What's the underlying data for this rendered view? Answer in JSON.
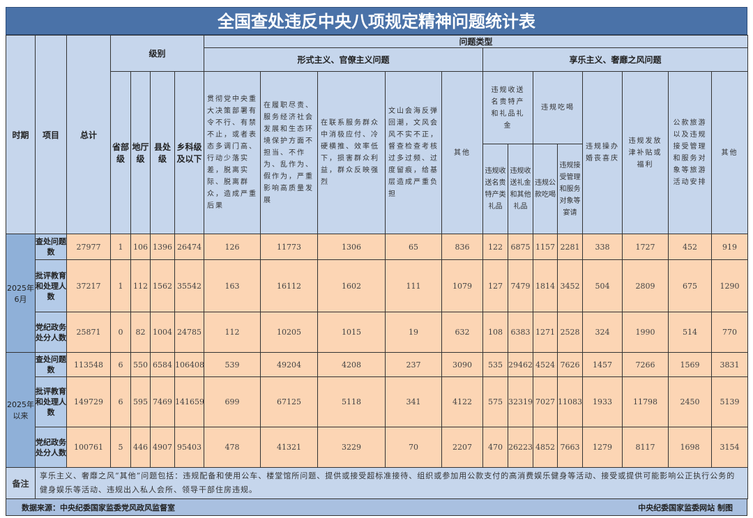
{
  "title": "全国查处违反中央八项规定精神问题统计表",
  "header": {
    "period": "时期",
    "item": "项目",
    "total": "总计",
    "level": "级别",
    "problem_type": "问题类型",
    "levels": [
      "省部级",
      "地厅级",
      "县处级",
      "乡科级及以下"
    ],
    "formalism": {
      "label": "形式主义、官僚主义问题",
      "cols": [
        "贯彻党中央重大决策部署有令不行、有禁不止，或者表态多调门高、行动少落实差，脱离实际、脱离群众，造成严重后果",
        "在履职尽责、服务经济社会发展和生态环境保护方面不担当、不作为、乱作为、假作为，严重影响高质量发展",
        "在联系服务群众中消极应付、冷硬横推、效率低下，损害群众利益，群众反映强烈",
        "文山会海反弹回潮，文风会风不实不正，督查检查考核过多过频、过度留痕，给基层造成严重负担",
        "其他"
      ]
    },
    "hedonism": {
      "label": "享乐主义、奢靡之风问题",
      "gifts": {
        "label": "违规收送名贵特产和礼品礼金",
        "sub": [
          "违规收送名贵特产类礼品",
          "违规收送礼金和其他礼品"
        ]
      },
      "dining": {
        "label": "违规吃喝",
        "sub": [
          "违规公款吃喝",
          "违规接受管理和服务对象等宴请"
        ]
      },
      "cols": [
        "违规操办婚丧喜庆",
        "违规发放津补贴或福利",
        "公款旅游以及违规接受管理和服务对象等旅游活动安排",
        "其他"
      ]
    }
  },
  "groups": [
    {
      "period": "2025年6月",
      "rows": [
        {
          "item": "查处问题数",
          "values": [
            27977,
            1,
            106,
            1396,
            26474,
            126,
            11773,
            1306,
            65,
            836,
            122,
            6875,
            1157,
            2281,
            338,
            1727,
            452,
            919
          ]
        },
        {
          "item": "批评教育和处理人数",
          "values": [
            37217,
            1,
            112,
            1562,
            35542,
            163,
            16112,
            1602,
            111,
            1079,
            127,
            7479,
            1814,
            3452,
            504,
            2809,
            675,
            1290
          ]
        },
        {
          "item": "党纪政务处分人数",
          "values": [
            25871,
            0,
            82,
            1004,
            24785,
            112,
            10205,
            1015,
            19,
            632,
            108,
            6383,
            1271,
            2528,
            324,
            1990,
            514,
            770
          ]
        }
      ]
    },
    {
      "period": "2025年以来",
      "rows": [
        {
          "item": "查处问题数",
          "values": [
            113548,
            6,
            550,
            6584,
            106408,
            539,
            49204,
            4208,
            237,
            3090,
            535,
            29462,
            4524,
            7626,
            1457,
            7266,
            1569,
            3831
          ]
        },
        {
          "item": "批评教育和处理人数",
          "values": [
            149729,
            6,
            595,
            7469,
            141659,
            699,
            67125,
            5118,
            341,
            4122,
            575,
            32319,
            7027,
            11083,
            1933,
            11798,
            2450,
            5139
          ]
        },
        {
          "item": "党纪政务处分人数",
          "values": [
            100761,
            5,
            446,
            4907,
            95403,
            478,
            41321,
            3229,
            70,
            2207,
            470,
            26223,
            4852,
            7663,
            1279,
            8117,
            1698,
            3154
          ]
        }
      ]
    }
  ],
  "notes": {
    "label": "备注",
    "text": "享乐主义、奢靡之风“其他”问题包括：违规配备和使用公车、楼堂馆所问题、提供或接受超标准接待、组织或参加用公款支付的高消费娱乐健身等活动、接受或提供可能影响公正执行公务的健身娱乐等活动、违规出入私人会所、领导干部住房违规。"
  },
  "footer": {
    "source": "数据来源：中央纪委国家监委党风政风监督室",
    "credit": "中央纪委国家监委网站 制图"
  },
  "colors": {
    "title_bg": "#4a72a8",
    "header_bg": "#c6d6ec",
    "data_bg": "#fcd5b4",
    "period_bg": "#8fb0d8"
  }
}
